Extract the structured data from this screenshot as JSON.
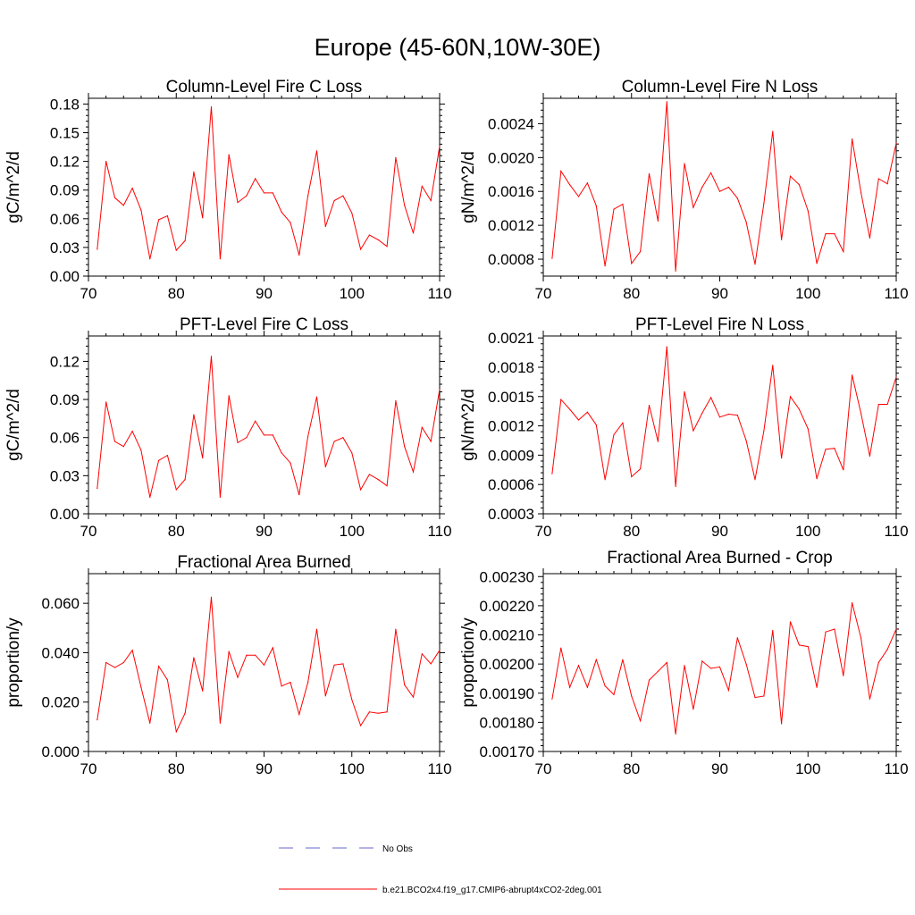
{
  "title": "Europe (45-60N,10W-30E)",
  "colors": {
    "series": "#ff0000",
    "no_obs": "#6666cc",
    "axis": "#000000"
  },
  "legend": [
    {
      "label": "No Obs",
      "style": "dashed",
      "color": "#6666cc"
    },
    {
      "label": "b.e21.BCO2x4.f19_g17.CMIP6-abrupt4xCO2-2deg.001",
      "style": "solid",
      "color": "#ff0000"
    }
  ],
  "chart_data": [
    {
      "type": "line",
      "title": "Column-Level Fire C Loss",
      "xlabel": "",
      "ylabel": "gC/m^2/d",
      "xlim": [
        70,
        110
      ],
      "ylim": [
        0,
        0.186
      ],
      "xticks": [
        70,
        80,
        90,
        100,
        110
      ],
      "xtick_labels": [
        "70",
        "80",
        "90",
        "100",
        "110"
      ],
      "yticks": [
        0,
        0.03,
        0.06,
        0.09,
        0.12,
        0.15,
        0.18
      ],
      "ytick_labels": [
        "0.00",
        "0.03",
        "0.06",
        "0.09",
        "0.12",
        "0.15",
        "0.18"
      ],
      "x": [
        71,
        72,
        73,
        74,
        75,
        76,
        77,
        78,
        79,
        80,
        81,
        82,
        83,
        84,
        85,
        86,
        87,
        88,
        89,
        90,
        91,
        92,
        93,
        94,
        95,
        96,
        97,
        98,
        99,
        100,
        101,
        102,
        103,
        104,
        105,
        106,
        107,
        108,
        109,
        110
      ],
      "series": [
        {
          "name": "b.e21.BCO2x4.f19_g17.CMIP6-abrupt4xCO2-2deg.001",
          "values": [
            0.028,
            0.12,
            0.082,
            0.074,
            0.092,
            0.069,
            0.018,
            0.059,
            0.063,
            0.027,
            0.037,
            0.109,
            0.061,
            0.177,
            0.018,
            0.127,
            0.077,
            0.084,
            0.102,
            0.087,
            0.087,
            0.067,
            0.056,
            0.022,
            0.084,
            0.131,
            0.052,
            0.079,
            0.084,
            0.066,
            0.028,
            0.043,
            0.038,
            0.031,
            0.124,
            0.074,
            0.045,
            0.094,
            0.079,
            0.136
          ]
        }
      ]
    },
    {
      "type": "line",
      "title": "Column-Level Fire N Loss",
      "xlabel": "",
      "ylabel": "gN/m^2/d",
      "xlim": [
        70,
        110
      ],
      "ylim": [
        0.0006,
        0.0027
      ],
      "xticks": [
        70,
        80,
        90,
        100,
        110
      ],
      "xtick_labels": [
        "70",
        "80",
        "90",
        "100",
        "110"
      ],
      "yticks": [
        0.0008,
        0.0012,
        0.0016,
        0.002,
        0.0024
      ],
      "ytick_labels": [
        "0.0008",
        "0.0012",
        "0.0016",
        "0.0020",
        "0.0024"
      ],
      "x": [
        71,
        72,
        73,
        74,
        75,
        76,
        77,
        78,
        79,
        80,
        81,
        82,
        83,
        84,
        85,
        86,
        87,
        88,
        89,
        90,
        91,
        92,
        93,
        94,
        95,
        96,
        97,
        98,
        99,
        100,
        101,
        102,
        103,
        104,
        105,
        106,
        107,
        108,
        109,
        110
      ],
      "series": [
        {
          "name": "b.e21.BCO2x4.f19_g17.CMIP6-abrupt4xCO2-2deg.001",
          "values": [
            0.00081,
            0.00184,
            0.00168,
            0.00154,
            0.0017,
            0.00143,
            0.00072,
            0.00139,
            0.00145,
            0.00075,
            0.00089,
            0.00181,
            0.00125,
            0.00266,
            0.00066,
            0.00193,
            0.00141,
            0.00165,
            0.00182,
            0.0016,
            0.00165,
            0.00152,
            0.00124,
            0.00074,
            0.00146,
            0.00231,
            0.00103,
            0.00178,
            0.00168,
            0.00137,
            0.00075,
            0.0011,
            0.0011,
            0.00089,
            0.00222,
            0.00159,
            0.00105,
            0.00175,
            0.00169,
            0.00217
          ]
        }
      ]
    },
    {
      "type": "line",
      "title": "PFT-Level Fire C Loss",
      "xlabel": "",
      "ylabel": "gC/m^2/d",
      "xlim": [
        70,
        110
      ],
      "ylim": [
        0,
        0.14
      ],
      "xticks": [
        70,
        80,
        90,
        100,
        110
      ],
      "xtick_labels": [
        "70",
        "80",
        "90",
        "100",
        "110"
      ],
      "yticks": [
        0,
        0.03,
        0.06,
        0.09,
        0.12
      ],
      "ytick_labels": [
        "0.00",
        "0.03",
        "0.06",
        "0.09",
        "0.12"
      ],
      "x": [
        71,
        72,
        73,
        74,
        75,
        76,
        77,
        78,
        79,
        80,
        81,
        82,
        83,
        84,
        85,
        86,
        87,
        88,
        89,
        90,
        91,
        92,
        93,
        94,
        95,
        96,
        97,
        98,
        99,
        100,
        101,
        102,
        103,
        104,
        105,
        106,
        107,
        108,
        109,
        110
      ],
      "series": [
        {
          "name": "b.e21.BCO2x4.f19_g17.CMIP6-abrupt4xCO2-2deg.001",
          "values": [
            0.02,
            0.088,
            0.057,
            0.053,
            0.065,
            0.05,
            0.013,
            0.042,
            0.046,
            0.019,
            0.027,
            0.078,
            0.044,
            0.124,
            0.013,
            0.093,
            0.056,
            0.06,
            0.073,
            0.062,
            0.062,
            0.048,
            0.04,
            0.015,
            0.061,
            0.092,
            0.037,
            0.057,
            0.06,
            0.048,
            0.019,
            0.031,
            0.027,
            0.022,
            0.089,
            0.053,
            0.033,
            0.068,
            0.057,
            0.098
          ]
        }
      ]
    },
    {
      "type": "line",
      "title": "PFT-Level Fire N Loss",
      "xlabel": "",
      "ylabel": "gN/m^2/d",
      "xlim": [
        70,
        110
      ],
      "ylim": [
        0.0003,
        0.00212
      ],
      "xticks": [
        70,
        80,
        90,
        100,
        110
      ],
      "xtick_labels": [
        "70",
        "80",
        "90",
        "100",
        "110"
      ],
      "yticks": [
        0.0003,
        0.0006,
        0.0009,
        0.0012,
        0.0015,
        0.0018,
        0.0021
      ],
      "ytick_labels": [
        "0.0003",
        "0.0006",
        "0.0009",
        "0.0012",
        "0.0015",
        "0.0018",
        "0.0021"
      ],
      "x": [
        71,
        72,
        73,
        74,
        75,
        76,
        77,
        78,
        79,
        80,
        81,
        82,
        83,
        84,
        85,
        86,
        87,
        88,
        89,
        90,
        91,
        92,
        93,
        94,
        95,
        96,
        97,
        98,
        99,
        100,
        101,
        102,
        103,
        104,
        105,
        106,
        107,
        108,
        109,
        110
      ],
      "series": [
        {
          "name": "b.e21.BCO2x4.f19_g17.CMIP6-abrupt4xCO2-2deg.001",
          "values": [
            0.00071,
            0.00147,
            0.00137,
            0.00126,
            0.00134,
            0.00121,
            0.00065,
            0.00111,
            0.00123,
            0.00068,
            0.00076,
            0.00141,
            0.00104,
            0.00201,
            0.00058,
            0.00155,
            0.00115,
            0.00133,
            0.00149,
            0.00129,
            0.00132,
            0.00131,
            0.00105,
            0.00065,
            0.00115,
            0.00182,
            0.00087,
            0.0015,
            0.00137,
            0.00117,
            0.00066,
            0.00096,
            0.00097,
            0.00075,
            0.00172,
            0.00133,
            0.00089,
            0.00142,
            0.00142,
            0.0017
          ]
        }
      ]
    },
    {
      "type": "line",
      "title": "Fractional Area Burned",
      "xlabel": "",
      "ylabel": "proportion/y",
      "xlim": [
        70,
        110
      ],
      "ylim": [
        0,
        0.072
      ],
      "xticks": [
        70,
        80,
        90,
        100,
        110
      ],
      "xtick_labels": [
        "70",
        "80",
        "90",
        "100",
        "110"
      ],
      "yticks": [
        0,
        0.02,
        0.04,
        0.06
      ],
      "ytick_labels": [
        "0.000",
        "0.020",
        "0.040",
        "0.060"
      ],
      "x": [
        71,
        72,
        73,
        74,
        75,
        76,
        77,
        78,
        79,
        80,
        81,
        82,
        83,
        84,
        85,
        86,
        87,
        88,
        89,
        90,
        91,
        92,
        93,
        94,
        95,
        96,
        97,
        98,
        99,
        100,
        101,
        102,
        103,
        104,
        105,
        106,
        107,
        108,
        109,
        110
      ],
      "series": [
        {
          "name": "b.e21.BCO2x4.f19_g17.CMIP6-abrupt4xCO2-2deg.001",
          "values": [
            0.0128,
            0.036,
            0.034,
            0.036,
            0.041,
            0.026,
            0.0115,
            0.0345,
            0.029,
            0.008,
            0.0155,
            0.038,
            0.0245,
            0.0625,
            0.0115,
            0.0405,
            0.03,
            0.039,
            0.039,
            0.035,
            0.042,
            0.0265,
            0.028,
            0.015,
            0.028,
            0.0495,
            0.0225,
            0.035,
            0.0355,
            0.021,
            0.0105,
            0.016,
            0.0155,
            0.016,
            0.0495,
            0.027,
            0.022,
            0.0395,
            0.0355,
            0.041
          ]
        }
      ]
    },
    {
      "type": "line",
      "title": "Fractional Area Burned - Crop",
      "xlabel": "",
      "ylabel": "proportion/y",
      "xlim": [
        70,
        110
      ],
      "ylim": [
        0.0017,
        0.00231
      ],
      "xticks": [
        70,
        80,
        90,
        100,
        110
      ],
      "xtick_labels": [
        "70",
        "80",
        "90",
        "100",
        "110"
      ],
      "yticks": [
        0.0017,
        0.0018,
        0.0019,
        0.002,
        0.0021,
        0.0022,
        0.0023
      ],
      "ytick_labels": [
        "0.00170",
        "0.00180",
        "0.00190",
        "0.00200",
        "0.00210",
        "0.00220",
        "0.00230"
      ],
      "x": [
        71,
        72,
        73,
        74,
        75,
        76,
        77,
        78,
        79,
        80,
        81,
        82,
        83,
        84,
        85,
        86,
        87,
        88,
        89,
        90,
        91,
        92,
        93,
        94,
        95,
        96,
        97,
        98,
        99,
        100,
        101,
        102,
        103,
        104,
        105,
        106,
        107,
        108,
        109,
        110
      ],
      "series": [
        {
          "name": "b.e21.BCO2x4.f19_g17.CMIP6-abrupt4xCO2-2deg.001",
          "values": [
            0.00188,
            0.002055,
            0.00192,
            0.001995,
            0.00192,
            0.002015,
            0.001925,
            0.001895,
            0.002015,
            0.00189,
            0.001805,
            0.001945,
            0.001975,
            0.002005,
            0.00176,
            0.001995,
            0.001845,
            0.00201,
            0.001985,
            0.00199,
            0.00191,
            0.00209,
            0.002,
            0.001885,
            0.00189,
            0.002115,
            0.001795,
            0.002145,
            0.002065,
            0.00206,
            0.00192,
            0.00211,
            0.00212,
            0.00196,
            0.00221,
            0.00209,
            0.00188,
            0.002005,
            0.00205,
            0.00212
          ]
        }
      ]
    }
  ]
}
